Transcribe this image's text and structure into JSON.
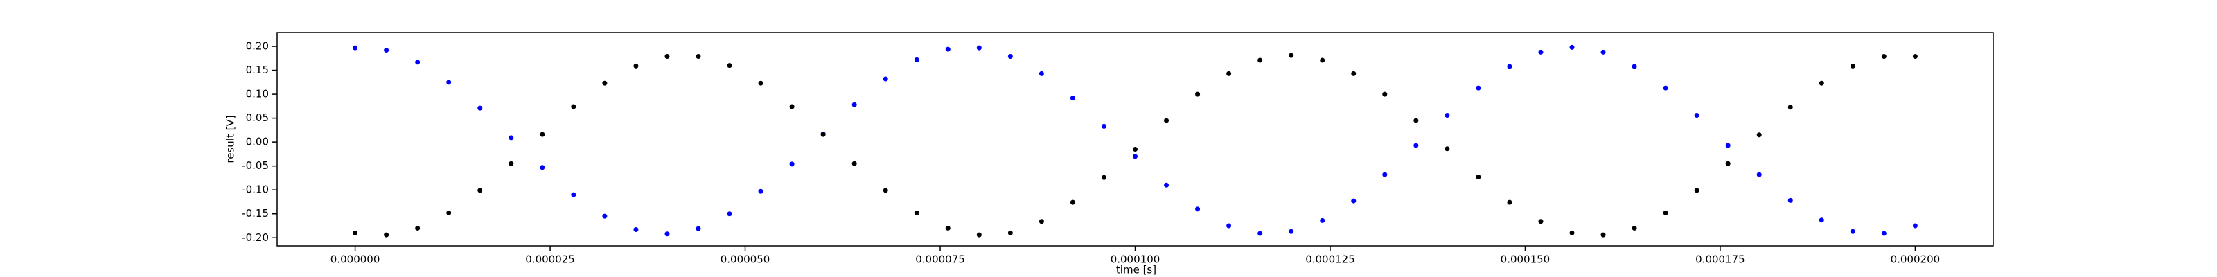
{
  "chart_data": {
    "type": "scatter",
    "xlabel": "time [s]",
    "ylabel": "result [V]",
    "xlim": [
      -1e-05,
      0.00021
    ],
    "ylim": [
      -0.217,
      0.229
    ],
    "xticks": [
      {
        "value": 0,
        "label": "0.000000"
      },
      {
        "value": 2.5e-05,
        "label": "0.000025"
      },
      {
        "value": 5e-05,
        "label": "0.000050"
      },
      {
        "value": 7.5e-05,
        "label": "0.000075"
      },
      {
        "value": 0.0001,
        "label": "0.000100"
      },
      {
        "value": 0.000125,
        "label": "0.000125"
      },
      {
        "value": 0.00015,
        "label": "0.000150"
      },
      {
        "value": 0.000175,
        "label": "0.000175"
      },
      {
        "value": 0.0002,
        "label": "0.000200"
      }
    ],
    "yticks": [
      {
        "value": 0.2,
        "label": "0.20"
      },
      {
        "value": 0.15,
        "label": "0.15"
      },
      {
        "value": 0.1,
        "label": "0.10"
      },
      {
        "value": 0.05,
        "label": "0.05"
      },
      {
        "value": 0,
        "label": "0.00"
      },
      {
        "value": -0.05,
        "label": "-0.05"
      },
      {
        "value": -0.1,
        "label": "-0.10"
      },
      {
        "value": -0.15,
        "label": "-0.15"
      },
      {
        "value": -0.2,
        "label": "-0.20"
      }
    ],
    "grid": false,
    "x": [
      0,
      4e-06,
      8e-06,
      1.2e-05,
      1.6e-05,
      2e-05,
      2.4e-05,
      2.8e-05,
      3.2e-05,
      3.6e-05,
      4e-05,
      4.4e-05,
      4.8e-05,
      5.2e-05,
      5.6e-05,
      6e-05,
      6.4e-05,
      6.8e-05,
      7.2e-05,
      7.6e-05,
      8e-05,
      8.4e-05,
      8.8e-05,
      9.2e-05,
      9.6e-05,
      0.0001,
      0.000104,
      0.000108,
      0.000112,
      0.000116,
      0.00012,
      0.000124,
      0.000128,
      0.000132,
      0.000136,
      0.00014,
      0.000144,
      0.000148,
      0.000152,
      0.000156,
      0.00016,
      0.000164,
      0.000168,
      0.000172,
      0.000176,
      0.00018,
      0.000184,
      0.000188,
      0.000192,
      0.000196,
      0.0002
    ],
    "series": [
      {
        "color": "#0000ff",
        "values": [
          0.197,
          0.192,
          0.167,
          0.125,
          0.071,
          0.009,
          -0.053,
          -0.11,
          -0.155,
          -0.183,
          -0.192,
          -0.181,
          -0.15,
          -0.103,
          -0.046,
          0.017,
          0.078,
          0.132,
          0.172,
          0.194,
          0.197,
          0.179,
          0.143,
          0.092,
          0.033,
          -0.03,
          -0.09,
          -0.14,
          -0.175,
          -0.191,
          -0.187,
          -0.164,
          -0.123,
          -0.068,
          -0.007,
          0.056,
          0.113,
          0.158,
          0.188,
          0.198,
          0.188,
          0.158,
          0.113,
          0.056,
          -0.007,
          -0.068,
          -0.122,
          -0.163,
          -0.187,
          -0.191,
          -0.175
        ]
      },
      {
        "color": "#000000",
        "values": [
          -0.19,
          -0.194,
          -0.18,
          -0.148,
          -0.101,
          -0.045,
          0.016,
          0.074,
          0.123,
          0.159,
          0.179,
          0.179,
          0.16,
          0.123,
          0.074,
          0.016,
          -0.045,
          -0.101,
          -0.148,
          -0.18,
          -0.194,
          -0.19,
          -0.166,
          -0.126,
          -0.074,
          -0.015,
          0.045,
          0.1,
          0.143,
          0.171,
          0.181,
          0.171,
          0.143,
          0.1,
          0.045,
          -0.014,
          -0.073,
          -0.126,
          -0.166,
          -0.19,
          -0.194,
          -0.18,
          -0.148,
          -0.101,
          -0.045,
          0.015,
          0.073,
          0.123,
          0.159,
          0.179,
          0.179
        ]
      }
    ]
  }
}
